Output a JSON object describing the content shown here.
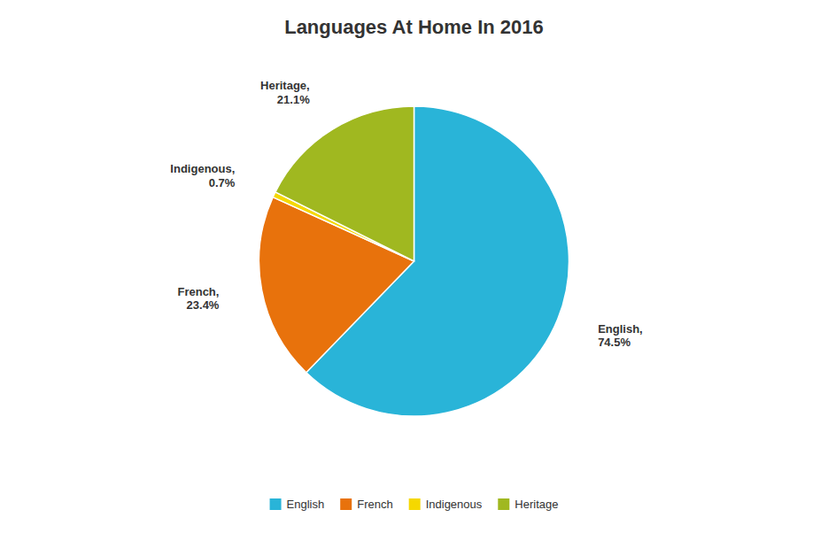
{
  "chart_data": {
    "type": "pie",
    "title": "Languages At Home In 2016",
    "categories": [
      "English",
      "French",
      "Indigenous",
      "Heritage"
    ],
    "values": [
      74.5,
      23.4,
      0.7,
      21.1
    ],
    "value_labels": [
      "English,\n74.5%",
      "French,\n23.4%",
      "Indigenous,\n0.7%",
      "Heritage,\n21.1%"
    ],
    "colors": [
      "#29B4D8",
      "#E8720C",
      "#F5D800",
      "#A0B820"
    ],
    "data_labels": true,
    "legend": "bottom"
  }
}
